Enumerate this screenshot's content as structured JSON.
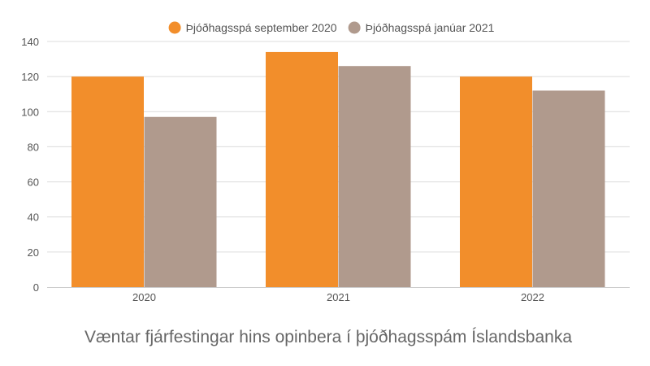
{
  "chart_data": {
    "type": "bar",
    "title": "Væntar fjárfestingar hins opinbera í þjóðhagsspám Íslandsbanka",
    "xlabel": "",
    "ylabel": "",
    "categories": [
      "2020",
      "2021",
      "2022"
    ],
    "series": [
      {
        "name": "Þjóðhagsspá september 2020",
        "color": "#f28e2b",
        "values": [
          120,
          134,
          120
        ]
      },
      {
        "name": "Þjóðhagsspá janúar 2021",
        "color": "#b09a8d",
        "values": [
          97,
          126,
          112
        ]
      }
    ],
    "ylim": [
      0,
      140
    ],
    "yticks": [
      "0",
      "20",
      "40",
      "60",
      "80",
      "100",
      "120",
      "140"
    ],
    "grid": true,
    "legend_position": "top-center"
  }
}
